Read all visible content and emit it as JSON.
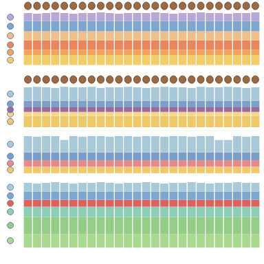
{
  "chart_data": [
    {
      "type": "bar",
      "stacked": true,
      "tick_labels": false,
      "grid": false,
      "marker": "face",
      "categories": [
        null,
        null,
        null,
        null,
        null,
        null,
        null,
        null,
        null,
        null,
        null,
        null,
        null,
        null,
        null,
        null,
        null,
        null,
        null,
        null,
        null,
        null,
        null,
        null,
        null,
        null
      ],
      "ylim": [
        0,
        78
      ],
      "series": [
        {
          "color": "#f2cd6b",
          "values": [
            15,
            15,
            15,
            15,
            15,
            15,
            15,
            15,
            15,
            15,
            15,
            15,
            15,
            15,
            15,
            15,
            15,
            15,
            15,
            15,
            15,
            15,
            15,
            15,
            15,
            15
          ]
        },
        {
          "color": "#f2a35c",
          "values": [
            8,
            8,
            8,
            8,
            8,
            8,
            8,
            8,
            8,
            8,
            8,
            8,
            8,
            8,
            8,
            8,
            8,
            8,
            8,
            8,
            8,
            8,
            8,
            8,
            8,
            8
          ]
        },
        {
          "color": "#e8875e",
          "values": [
            14,
            14,
            14,
            14,
            14,
            14,
            14,
            14,
            14,
            14,
            14,
            14,
            14,
            14,
            14,
            14,
            14,
            14,
            14,
            14,
            14,
            14,
            14,
            14,
            14,
            14
          ]
        },
        {
          "color": "#f0c08a",
          "values": [
            13,
            13,
            13,
            13,
            13,
            13,
            13,
            13,
            13,
            13,
            13,
            13,
            13,
            13,
            13,
            13,
            13,
            13,
            13,
            13,
            13,
            13,
            13,
            13,
            13,
            13
          ]
        },
        {
          "color": "#7fa6cf",
          "values": [
            15,
            15,
            15,
            15,
            15,
            15,
            15,
            15,
            15,
            15,
            15,
            15,
            15,
            15,
            15,
            15,
            15,
            15,
            15,
            15,
            15,
            15,
            15,
            15,
            15,
            15
          ]
        },
        {
          "color": "#b7a9d6",
          "values": [
            12,
            11,
            12,
            13,
            12,
            11,
            12,
            12,
            13,
            12,
            11,
            12,
            12,
            12,
            13,
            12,
            11,
            12,
            12,
            13,
            12,
            12,
            11,
            12,
            12,
            13
          ]
        }
      ]
    },
    {
      "type": "bar",
      "stacked": true,
      "tick_labels": false,
      "grid": false,
      "marker": "face",
      "categories": [
        null,
        null,
        null,
        null,
        null,
        null,
        null,
        null,
        null,
        null,
        null,
        null,
        null,
        null,
        null,
        null,
        null,
        null,
        null,
        null,
        null,
        null,
        null,
        null,
        null,
        null
      ],
      "ylim": [
        0,
        62
      ],
      "series": [
        {
          "color": "#efc86a",
          "values": [
            17,
            17,
            17,
            17,
            17,
            17,
            17,
            17,
            17,
            17,
            17,
            17,
            17,
            17,
            17,
            17,
            17,
            17,
            17,
            17,
            17,
            17,
            17,
            17,
            17,
            17
          ]
        },
        {
          "color": "#f3d88c",
          "values": [
            6,
            6,
            6,
            6,
            6,
            6,
            6,
            6,
            6,
            6,
            6,
            6,
            6,
            6,
            6,
            6,
            6,
            6,
            6,
            6,
            6,
            6,
            6,
            6,
            6,
            6
          ]
        },
        {
          "color": "#9b6a9e",
          "values": [
            7,
            7,
            7,
            7,
            7,
            7,
            7,
            7,
            7,
            7,
            7,
            7,
            7,
            7,
            7,
            7,
            7,
            7,
            7,
            7,
            7,
            7,
            7,
            7,
            7,
            7
          ]
        },
        {
          "color": "#7d9ec8",
          "values": [
            10,
            10,
            10,
            10,
            10,
            10,
            10,
            10,
            10,
            10,
            10,
            10,
            10,
            10,
            10,
            10,
            10,
            10,
            10,
            10,
            10,
            10,
            10,
            10,
            10,
            10
          ]
        },
        {
          "color": "#a8c8d8",
          "values": [
            20,
            21,
            20,
            19,
            21,
            20,
            20,
            21,
            19,
            20,
            20,
            21,
            20,
            19,
            20,
            21,
            20,
            20,
            19,
            21,
            20,
            20,
            21,
            20,
            19,
            20
          ]
        }
      ]
    },
    {
      "type": "bar",
      "stacked": true,
      "tick_labels": false,
      "grid": false,
      "categories": [
        null,
        null,
        null,
        null,
        null,
        null,
        null,
        null,
        null,
        null,
        null,
        null,
        null,
        null,
        null,
        null,
        null,
        null,
        null,
        null,
        null,
        null,
        null,
        null,
        null,
        null
      ],
      "ylim": [
        0,
        60
      ],
      "series": [
        {
          "color": "#efc96c",
          "values": [
            10,
            10,
            10,
            10,
            10,
            10,
            10,
            10,
            10,
            10,
            10,
            10,
            10,
            10,
            10,
            10,
            10,
            10,
            10,
            10,
            10,
            10,
            10,
            10,
            10,
            10
          ]
        },
        {
          "color": "#e98a8a",
          "values": [
            10,
            10,
            10,
            10,
            10,
            10,
            10,
            10,
            10,
            10,
            10,
            10,
            10,
            10,
            10,
            10,
            10,
            10,
            10,
            10,
            10,
            10,
            10,
            10,
            10,
            10
          ]
        },
        {
          "color": "#7a9cc9",
          "values": [
            12,
            12,
            12,
            12,
            12,
            12,
            12,
            12,
            12,
            12,
            12,
            12,
            12,
            12,
            12,
            12,
            12,
            12,
            12,
            12,
            12,
            12,
            12,
            12,
            12,
            12
          ]
        },
        {
          "color": "#a9c9d9",
          "values": [
            25,
            24,
            25,
            25,
            19,
            25,
            24,
            25,
            25,
            24,
            25,
            25,
            24,
            25,
            25,
            24,
            25,
            25,
            24,
            25,
            25,
            19,
            19,
            25,
            24,
            25
          ]
        }
      ]
    },
    {
      "type": "bar",
      "stacked": true,
      "tick_labels": false,
      "grid": false,
      "categories": [
        null,
        null,
        null,
        null,
        null,
        null,
        null,
        null,
        null,
        null,
        null,
        null,
        null,
        null,
        null,
        null,
        null,
        null,
        null,
        null,
        null,
        null,
        null,
        null,
        null,
        null
      ],
      "ylim": [
        0,
        96
      ],
      "series": [
        {
          "color": "#a9d88f",
          "values": [
            20,
            20,
            20,
            20,
            20,
            20,
            20,
            20,
            20,
            20,
            20,
            20,
            20,
            20,
            20,
            20,
            20,
            20,
            20,
            20,
            20,
            20,
            20,
            20,
            20,
            20
          ]
        },
        {
          "color": "#93cd86",
          "values": [
            25,
            25,
            25,
            25,
            25,
            25,
            25,
            25,
            25,
            25,
            25,
            25,
            25,
            25,
            25,
            25,
            25,
            25,
            25,
            25,
            25,
            25,
            25,
            25,
            25,
            25
          ]
        },
        {
          "color": "#8ccfb6",
          "values": [
            15,
            15,
            15,
            15,
            15,
            15,
            15,
            15,
            15,
            15,
            15,
            15,
            15,
            15,
            15,
            15,
            15,
            15,
            15,
            15,
            15,
            15,
            15,
            15,
            15,
            15
          ]
        },
        {
          "color": "#e0605a",
          "values": [
            10,
            10,
            10,
            10,
            10,
            10,
            10,
            10,
            10,
            10,
            10,
            10,
            10,
            10,
            10,
            10,
            10,
            10,
            10,
            10,
            10,
            10,
            10,
            10,
            10,
            10
          ]
        },
        {
          "color": "#7ea7cf",
          "values": [
            12,
            12,
            12,
            12,
            12,
            12,
            12,
            12,
            12,
            12,
            12,
            12,
            12,
            12,
            12,
            12,
            12,
            12,
            12,
            12,
            12,
            12,
            12,
            12,
            12,
            12
          ]
        },
        {
          "color": "#a8cad8",
          "values": [
            13,
            12,
            13,
            14,
            13,
            12,
            13,
            13,
            14,
            13,
            12,
            13,
            13,
            14,
            13,
            12,
            13,
            13,
            14,
            13,
            12,
            13,
            13,
            14,
            13,
            13
          ]
        }
      ]
    }
  ]
}
